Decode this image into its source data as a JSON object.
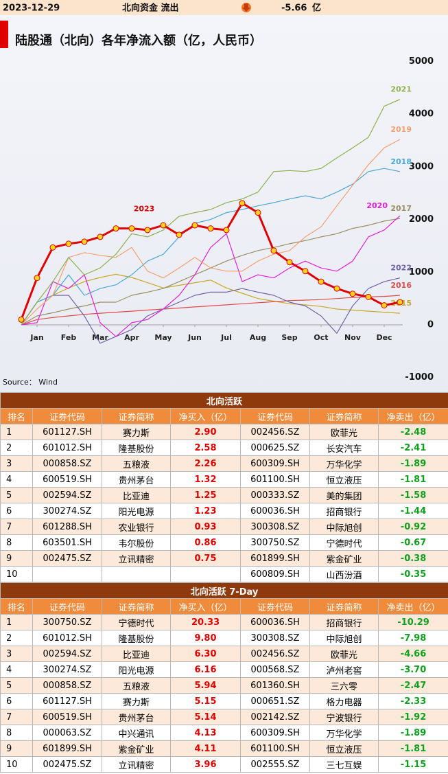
{
  "header": {
    "date": "2023-12-29",
    "label": "北向资金 流出",
    "value": "-5.66",
    "unit": "亿"
  },
  "chart_data": {
    "type": "line",
    "title": "陆股通（北向）各年净流入额（亿，人民币）",
    "source": "Source： Wind",
    "x": [
      0,
      0.5,
      1,
      1.5,
      2,
      2.5,
      3,
      3.5,
      4,
      4.5,
      5,
      5.5,
      6,
      6.5,
      7,
      7.5,
      8,
      8.5,
      9,
      9.5,
      10,
      10.5,
      11,
      11.5,
      12
    ],
    "xlim": [
      0,
      12
    ],
    "xticks": [
      {
        "value": 0.5,
        "label": "Jan"
      },
      {
        "value": 1.5,
        "label": "Feb"
      },
      {
        "value": 2.5,
        "label": "Mar"
      },
      {
        "value": 3.5,
        "label": "Apr"
      },
      {
        "value": 4.5,
        "label": "May"
      },
      {
        "value": 5.5,
        "label": "Jun"
      },
      {
        "value": 6.5,
        "label": "Jul"
      },
      {
        "value": 7.5,
        "label": "Aug"
      },
      {
        "value": 8.5,
        "label": "Sep"
      },
      {
        "value": 9.5,
        "label": "Oct"
      },
      {
        "value": 10.5,
        "label": "Nov"
      },
      {
        "value": 11.5,
        "label": "Dec"
      }
    ],
    "ylim": [
      -1000,
      5000
    ],
    "yticks": [
      5000,
      4000,
      3000,
      2000,
      1000,
      0,
      -1000
    ],
    "series": [
      {
        "name": "2015",
        "color": "#c8a828",
        "values": [
          0,
          430,
          560,
          700,
          820,
          900,
          960,
          900,
          800,
          700,
          750,
          800,
          850,
          700,
          600,
          500,
          450,
          400,
          380,
          350,
          300,
          280,
          260,
          240,
          220
        ]
      },
      {
        "name": "2016",
        "color": "#e04848",
        "values": [
          0,
          100,
          140,
          170,
          200,
          220,
          240,
          260,
          280,
          300,
          320,
          340,
          360,
          380,
          400,
          420,
          440,
          460,
          470,
          480,
          500,
          520,
          530,
          540,
          560
        ]
      },
      {
        "name": "2017",
        "color": "#9a8f62",
        "values": [
          0,
          170,
          230,
          300,
          360,
          430,
          430,
          560,
          620,
          690,
          820,
          950,
          1080,
          1210,
          1320,
          1410,
          1470,
          1540,
          1600,
          1670,
          1730,
          1830,
          1890,
          1970,
          2020
        ]
      },
      {
        "name": "2022",
        "color": "#7262a6",
        "values": [
          0,
          430,
          560,
          560,
          170,
          -350,
          -220,
          -90,
          170,
          300,
          430,
          560,
          620,
          620,
          690,
          620,
          560,
          430,
          360,
          170,
          -160,
          360,
          690,
          820,
          890
        ]
      },
      {
        "name": "2020",
        "color": "#e020d8",
        "values": [
          0,
          40,
          820,
          690,
          950,
          40,
          -220,
          40,
          100,
          300,
          560,
          950,
          1470,
          1730,
          820,
          950,
          890,
          1080,
          1210,
          1080,
          1020,
          1210,
          1670,
          1800,
          2070
        ]
      },
      {
        "name": "2018",
        "color": "#48a8d2",
        "values": [
          0,
          430,
          560,
          950,
          560,
          690,
          760,
          950,
          1210,
          1340,
          1670,
          1930,
          2000,
          2130,
          2190,
          2260,
          2320,
          2390,
          2450,
          2390,
          2520,
          2670,
          2910,
          2970,
          2910
        ]
      },
      {
        "name": "2019",
        "color": "#f2a070",
        "values": [
          0,
          300,
          560,
          1280,
          1370,
          1320,
          1280,
          1470,
          1020,
          890,
          1080,
          1280,
          1080,
          1020,
          1020,
          1210,
          1340,
          1410,
          1670,
          1860,
          2260,
          2650,
          3040,
          3360,
          3520
        ]
      },
      {
        "name": "2021",
        "color": "#8db050",
        "values": [
          0,
          430,
          820,
          1280,
          950,
          1080,
          1340,
          1730,
          1670,
          1800,
          2060,
          2130,
          2190,
          2320,
          2390,
          2520,
          2910,
          2930,
          2910,
          2970,
          3170,
          3360,
          3560,
          4150,
          4280
        ]
      },
      {
        "name": "2023",
        "color": "#e00000",
        "marker_color": "#ffd21e",
        "markers": true,
        "values": [
          100,
          890,
          1470,
          1540,
          1580,
          1670,
          1830,
          1830,
          1800,
          1890,
          1710,
          1890,
          1830,
          1800,
          2310,
          2130,
          1410,
          1190,
          1020,
          820,
          690,
          590,
          530,
          370,
          430
        ]
      }
    ]
  },
  "tables": [
    {
      "title": "北向活跃",
      "header": [
        "排名",
        "证券代码",
        "证券简称",
        "净买入（亿）",
        "证券代码",
        "证券简称",
        "净卖出（亿）"
      ],
      "rows": [
        [
          1,
          "601127.SH",
          "赛力斯",
          "2.90",
          "002456.SZ",
          "欧菲光",
          "-2.48"
        ],
        [
          2,
          "601012.SH",
          "隆基股份",
          "2.58",
          "000625.SZ",
          "长安汽车",
          "-2.41"
        ],
        [
          3,
          "000858.SZ",
          "五粮液",
          "2.26",
          "600309.SH",
          "万华化学",
          "-1.89"
        ],
        [
          4,
          "600519.SH",
          "贵州茅台",
          "1.32",
          "601100.SH",
          "恒立液压",
          "-1.81"
        ],
        [
          5,
          "002594.SZ",
          "比亚迪",
          "1.25",
          "000333.SZ",
          "美的集团",
          "-1.58"
        ],
        [
          6,
          "300274.SZ",
          "阳光电源",
          "1.23",
          "600036.SH",
          "招商银行",
          "-1.44"
        ],
        [
          7,
          "601288.SH",
          "农业银行",
          "0.93",
          "300308.SZ",
          "中际旭创",
          "-0.92"
        ],
        [
          8,
          "603501.SH",
          "韦尔股份",
          "0.86",
          "300750.SZ",
          "宁德时代",
          "-0.67"
        ],
        [
          9,
          "002475.SZ",
          "立讯精密",
          "0.75",
          "601899.SH",
          "紫金矿业",
          "-0.38"
        ],
        [
          10,
          null,
          null,
          null,
          "600809.SH",
          "山西汾酒",
          "-0.35"
        ]
      ]
    },
    {
      "title": "北向活跃 7-Day",
      "header": [
        "排名",
        "证券代码",
        "证券简称",
        "净买入（亿）",
        "证券代码",
        "证券简称",
        "净卖出（亿）"
      ],
      "rows": [
        [
          1,
          "300750.SZ",
          "宁德时代",
          "20.33",
          "600036.SH",
          "招商银行",
          "-10.29"
        ],
        [
          2,
          "601012.SH",
          "隆基股份",
          "9.80",
          "300308.SZ",
          "中际旭创",
          "-7.98"
        ],
        [
          3,
          "002594.SZ",
          "比亚迪",
          "6.30",
          "002456.SZ",
          "欧菲光",
          "-4.66"
        ],
        [
          4,
          "300274.SZ",
          "阳光电源",
          "6.16",
          "000568.SZ",
          "泸州老窖",
          "-3.70"
        ],
        [
          5,
          "000858.SZ",
          "五粮液",
          "5.94",
          "601360.SH",
          "三六零",
          "-2.47"
        ],
        [
          6,
          "601127.SH",
          "赛力斯",
          "5.15",
          "000651.SZ",
          "格力电器",
          "-2.33"
        ],
        [
          7,
          "600519.SH",
          "贵州茅台",
          "5.14",
          "002142.SZ",
          "宁波银行",
          "-1.92"
        ],
        [
          8,
          "000063.SZ",
          "中兴通讯",
          "4.13",
          "600309.SH",
          "万华化学",
          "-1.89"
        ],
        [
          9,
          "601899.SH",
          "紫金矿业",
          "4.11",
          "601100.SH",
          "恒立液压",
          "-1.81"
        ],
        [
          10,
          "002475.SZ",
          "立讯精密",
          "3.96",
          "002555.SZ",
          "三七互娱",
          "-1.15"
        ]
      ]
    }
  ]
}
